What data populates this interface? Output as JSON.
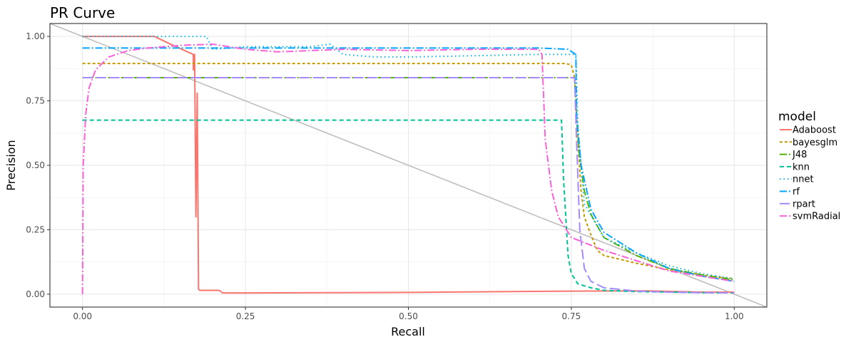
{
  "chart_data": {
    "type": "line",
    "title": "PR Curve",
    "xlabel": "Recall",
    "ylabel": "Precision",
    "xlim": [
      -0.05,
      1.05
    ],
    "ylim": [
      -0.05,
      1.05
    ],
    "xticks": [
      0.0,
      0.25,
      0.5,
      0.75,
      1.0
    ],
    "xtick_labels": [
      "0.00",
      "0.25",
      "0.50",
      "0.75",
      "1.00"
    ],
    "yticks": [
      0.0,
      0.25,
      0.5,
      0.75,
      1.0
    ],
    "ytick_labels": [
      "0.00",
      "0.25",
      "0.50",
      "0.75",
      "1.00"
    ],
    "grid": true,
    "legend": {
      "title": "model",
      "position": "right"
    },
    "reference_line": {
      "x": [
        -0.05,
        1.05
      ],
      "y": [
        1.05,
        -0.05
      ],
      "color": "#bebebe"
    },
    "series": [
      {
        "name": "Adaboost",
        "color": "#F8766D",
        "dash": "solid",
        "x": [
          0.0,
          0.11,
          0.135,
          0.17,
          0.17,
          0.172,
          0.174,
          0.176,
          0.178,
          0.18,
          0.21,
          0.215,
          0.25,
          0.5,
          0.75,
          0.87,
          0.95,
          1.0
        ],
        "y": [
          1.0,
          1.0,
          0.97,
          0.93,
          0.87,
          0.93,
          0.3,
          0.78,
          0.02,
          0.015,
          0.015,
          0.005,
          0.005,
          0.007,
          0.012,
          0.013,
          0.008,
          0.008
        ]
      },
      {
        "name": "bayesglm",
        "color": "#C49A00",
        "dash": "4,3",
        "x": [
          0.0,
          0.74,
          0.75,
          0.755,
          0.76,
          0.765,
          0.77,
          0.78,
          0.79,
          0.8,
          0.85,
          0.9,
          0.95,
          0.98,
          1.0
        ],
        "y": [
          0.895,
          0.895,
          0.89,
          0.84,
          0.6,
          0.4,
          0.3,
          0.23,
          0.17,
          0.15,
          0.12,
          0.095,
          0.075,
          0.065,
          0.06
        ]
      },
      {
        "name": "J48",
        "color": "#53B400",
        "dash": "10,3,2,3",
        "x": [
          0.0,
          0.755,
          0.758,
          0.762,
          0.77,
          0.78,
          0.8,
          0.85,
          0.9,
          0.95,
          1.0
        ],
        "y": [
          0.84,
          0.84,
          0.7,
          0.55,
          0.4,
          0.31,
          0.22,
          0.15,
          0.1,
          0.075,
          0.055
        ]
      },
      {
        "name": "knn",
        "color": "#00C094",
        "dash": "6,4",
        "x": [
          0.0,
          0.735,
          0.738,
          0.745,
          0.75,
          0.76,
          0.78,
          0.8,
          0.85,
          0.9,
          0.95,
          1.0
        ],
        "y": [
          0.675,
          0.675,
          0.45,
          0.15,
          0.08,
          0.04,
          0.025,
          0.015,
          0.01,
          0.008,
          0.006,
          0.005
        ]
      },
      {
        "name": "nnet",
        "color": "#00B6EB",
        "dash": "1.5,4",
        "x": [
          0.0,
          0.11,
          0.19,
          0.2,
          0.25,
          0.35,
          0.38,
          0.4,
          0.45,
          0.5,
          0.6,
          0.7,
          0.74,
          0.757,
          0.76,
          0.77,
          0.8,
          0.85,
          0.9,
          0.95,
          1.0
        ],
        "y": [
          1.0,
          1.0,
          1.0,
          0.95,
          0.96,
          0.96,
          0.97,
          0.93,
          0.92,
          0.92,
          0.925,
          0.93,
          0.93,
          0.93,
          0.65,
          0.35,
          0.22,
          0.16,
          0.11,
          0.08,
          0.06
        ]
      },
      {
        "name": "rf",
        "color": "#06A4FF",
        "dash": "10,3,2,3",
        "x": [
          0.0,
          0.25,
          0.5,
          0.7,
          0.745,
          0.757,
          0.758,
          0.765,
          0.78,
          0.8,
          0.85,
          0.9,
          0.95,
          1.0
        ],
        "y": [
          0.955,
          0.955,
          0.955,
          0.955,
          0.95,
          0.93,
          0.7,
          0.5,
          0.33,
          0.24,
          0.16,
          0.1,
          0.07,
          0.05
        ]
      },
      {
        "name": "rpart",
        "color": "#A58AFF",
        "dash": "14,5",
        "x": [
          0.0,
          0.755,
          0.758,
          0.763,
          0.77,
          0.78,
          0.8,
          0.85,
          0.9,
          0.95,
          1.0
        ],
        "y": [
          0.84,
          0.84,
          0.6,
          0.25,
          0.1,
          0.05,
          0.025,
          0.012,
          0.008,
          0.006,
          0.005
        ]
      },
      {
        "name": "svmRadial",
        "color": "#FB61D7",
        "dash": "10,3,2,3",
        "x": [
          0.0,
          0.001,
          0.005,
          0.01,
          0.02,
          0.04,
          0.07,
          0.1,
          0.15,
          0.2,
          0.25,
          0.3,
          0.4,
          0.5,
          0.6,
          0.7,
          0.705,
          0.71,
          0.72,
          0.73,
          0.75,
          0.8,
          0.85,
          0.9,
          0.95,
          1.0
        ],
        "y": [
          0.0,
          0.5,
          0.7,
          0.8,
          0.87,
          0.92,
          0.945,
          0.955,
          0.965,
          0.97,
          0.95,
          0.94,
          0.95,
          0.945,
          0.95,
          0.95,
          0.93,
          0.6,
          0.4,
          0.3,
          0.22,
          0.17,
          0.13,
          0.09,
          0.07,
          0.05
        ]
      }
    ]
  }
}
